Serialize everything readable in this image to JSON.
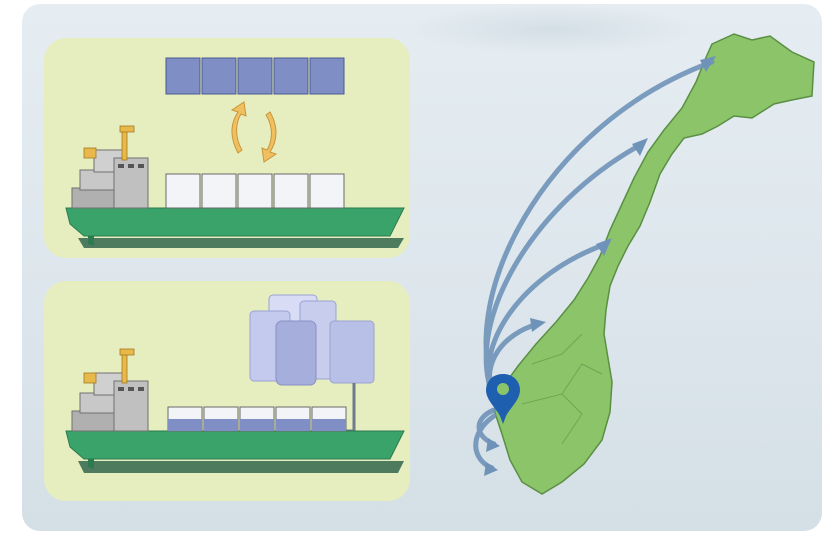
{
  "colors": {
    "frame_background": "#dfe8ee",
    "panel_background": "#e6eec0",
    "hull": "#3aa36a",
    "hull_shadow": "#4e7a5e",
    "superstructure": "#c8c8c8",
    "crane": "#e8b94a",
    "container_full": "#7f8fc6",
    "container_empty": "#f2f4f8",
    "swap_arrow": "#f0c060",
    "tank": "#b8c0e8",
    "map_land": "#8cc46a",
    "route_arrow": "#6f93b8",
    "location_pin": "#1f5fb0"
  },
  "icons": {
    "top_panel": [
      "cargo-ship-icon",
      "container-stack-icon",
      "swap-arrows-icon"
    ],
    "bottom_panel": [
      "cargo-ship-icon",
      "storage-tank-icon",
      "pipe-icon"
    ],
    "map": [
      "norway-map-icon",
      "route-arrow-icon",
      "location-pin-icon"
    ]
  }
}
